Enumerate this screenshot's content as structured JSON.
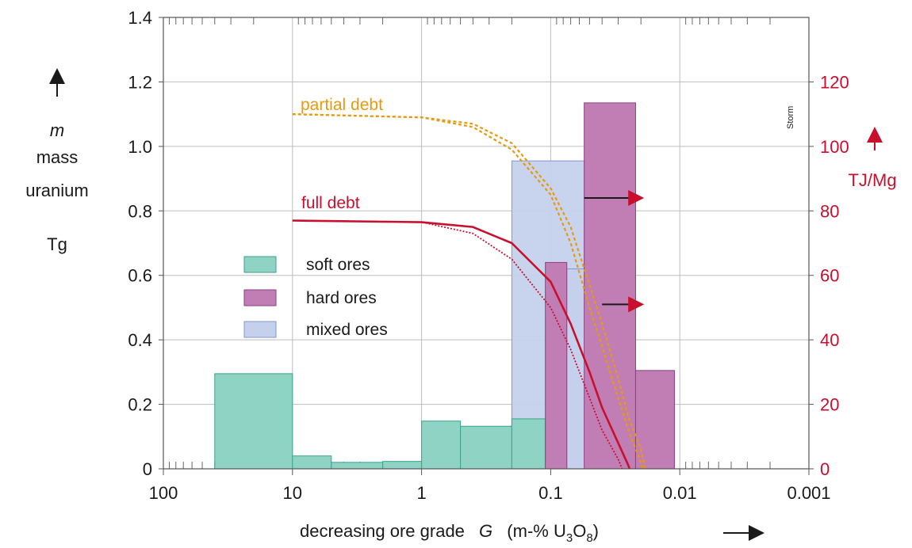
{
  "chart_data": {
    "type": "bar",
    "xlabel": "decreasing ore grade",
    "xlabel_symbol": "G",
    "xlabel_unit": "(m-% U",
    "xlabel_sub3": "3",
    "xlabel_o": "O",
    "xlabel_sub8": "8",
    "xlabel_close": ")",
    "x_scale": "log, reversed",
    "xlim": [
      100,
      0.001
    ],
    "x_ticks": [
      {
        "value": 100,
        "label": "100"
      },
      {
        "value": 10,
        "label": "10"
      },
      {
        "value": 1,
        "label": "1"
      },
      {
        "value": 0.1,
        "label": "0.1"
      },
      {
        "value": 0.01,
        "label": "0.01"
      },
      {
        "value": 0.001,
        "label": "0.001"
      }
    ],
    "y_left": {
      "label_symbol": "m",
      "label_line1": "mass",
      "label_line2": "uranium",
      "unit": "Tg",
      "ylim": [
        0,
        1.4
      ],
      "ticks": [
        {
          "value": 0,
          "label": "0"
        },
        {
          "value": 0.2,
          "label": "0.2"
        },
        {
          "value": 0.4,
          "label": "0.4"
        },
        {
          "value": 0.6,
          "label": "0.6"
        },
        {
          "value": 0.8,
          "label": "0.8"
        },
        {
          "value": 1.0,
          "label": "1.0"
        },
        {
          "value": 1.2,
          "label": "1.2"
        },
        {
          "value": 1.4,
          "label": "1.4"
        }
      ]
    },
    "y_right": {
      "unit": "TJ/Mg",
      "ylim": [
        0,
        140
      ],
      "ticks": [
        {
          "value": 0,
          "label": "0"
        },
        {
          "value": 20,
          "label": "20"
        },
        {
          "value": 40,
          "label": "40"
        },
        {
          "value": 60,
          "label": "60"
        },
        {
          "value": 80,
          "label": "80"
        },
        {
          "value": 100,
          "label": "100"
        },
        {
          "value": 120,
          "label": "120"
        }
      ]
    },
    "grid": true,
    "legend_position": "center-left",
    "series": [
      {
        "name": "soft ores",
        "color": "#8ed3c3",
        "stroke": "#3aa58c",
        "bars": [
          {
            "x0": 40,
            "x1": 10,
            "value": 0.295
          },
          {
            "x0": 10,
            "x1": 5,
            "value": 0.04
          },
          {
            "x0": 5,
            "x1": 2,
            "value": 0.02
          },
          {
            "x0": 2,
            "x1": 1,
            "value": 0.023
          },
          {
            "x0": 1,
            "x1": 0.5,
            "value": 0.148
          },
          {
            "x0": 0.5,
            "x1": 0.2,
            "value": 0.132
          },
          {
            "x0": 0.2,
            "x1": 0.11,
            "value": 0.155
          }
        ]
      },
      {
        "name": "hard ores",
        "color": "#c07eb4",
        "stroke": "#8e3f82",
        "bars": [
          {
            "x0": 0.11,
            "x1": 0.075,
            "value": 0.64
          },
          {
            "x0": 0.055,
            "x1": 0.022,
            "value": 1.135
          },
          {
            "x0": 0.022,
            "x1": 0.011,
            "value": 0.305
          }
        ]
      },
      {
        "name": "mixed ores",
        "color": "#c5d1ec",
        "stroke": "#7f97cf",
        "bars": [
          {
            "x0": 0.2,
            "x1": 0.055,
            "value": 0.955
          },
          {
            "x0": 0.075,
            "x1": 0.022,
            "value": 0.62
          }
        ]
      }
    ],
    "curves": [
      {
        "name": "partial debt",
        "color": "#e8990f",
        "style": "dashed",
        "axis": "right",
        "points": [
          [
            120,
            110
          ],
          [
            10,
            110
          ],
          [
            1,
            109
          ],
          [
            0.4,
            107
          ],
          [
            0.2,
            101
          ],
          [
            0.1,
            87
          ],
          [
            0.07,
            75
          ],
          [
            0.05,
            57
          ],
          [
            0.04,
            45
          ],
          [
            0.03,
            28
          ],
          [
            0.025,
            16
          ],
          [
            0.02,
            6
          ],
          [
            0.0185,
            0
          ]
        ]
      },
      {
        "name": "partial debt",
        "color": "#e8990f",
        "style": "dashed",
        "axis": "right",
        "points": [
          [
            120,
            110
          ],
          [
            10,
            110
          ],
          [
            1,
            109
          ],
          [
            0.4,
            106
          ],
          [
            0.2,
            99
          ],
          [
            0.1,
            85
          ],
          [
            0.07,
            70
          ],
          [
            0.05,
            50
          ],
          [
            0.04,
            38
          ],
          [
            0.03,
            22
          ],
          [
            0.025,
            12
          ],
          [
            0.02,
            2
          ],
          [
            0.0195,
            0
          ]
        ]
      },
      {
        "name": "full debt",
        "color": "#c8102e",
        "style": "solid",
        "axis": "right",
        "points": [
          [
            120,
            77.5
          ],
          [
            10,
            77
          ],
          [
            1,
            76.5
          ],
          [
            0.4,
            75
          ],
          [
            0.2,
            70
          ],
          [
            0.1,
            58
          ],
          [
            0.07,
            45
          ],
          [
            0.05,
            30
          ],
          [
            0.04,
            19
          ],
          [
            0.03,
            8
          ],
          [
            0.025,
            1
          ],
          [
            0.0245,
            0
          ]
        ]
      },
      {
        "name": "full debt",
        "color": "#c8102e",
        "style": "dotted",
        "axis": "right",
        "points": [
          [
            120,
            77.5
          ],
          [
            10,
            77
          ],
          [
            1,
            76.5
          ],
          [
            0.4,
            73
          ],
          [
            0.2,
            65
          ],
          [
            0.1,
            50
          ],
          [
            0.07,
            37
          ],
          [
            0.05,
            22
          ],
          [
            0.04,
            12
          ],
          [
            0.03,
            3
          ],
          [
            0.028,
            0
          ]
        ]
      }
    ],
    "arrows": [
      {
        "from_x": 0.055,
        "to_x": 0.02,
        "y_right": 84
      },
      {
        "from_x": 0.04,
        "to_x": 0.02,
        "y_right": 51
      }
    ],
    "credit": "Storm"
  }
}
